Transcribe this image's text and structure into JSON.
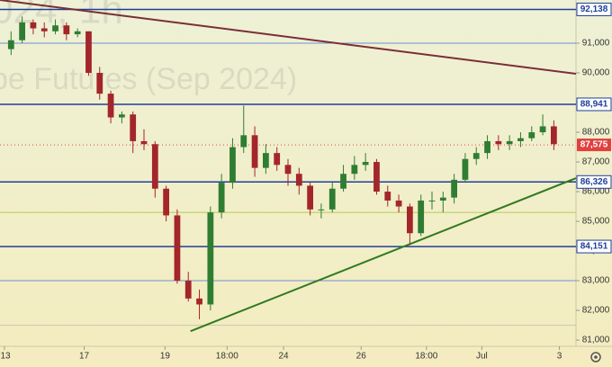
{
  "chart_data": {
    "type": "candlestick",
    "watermark": [
      "024, 1h",
      "be Futures (Sep 2024)"
    ],
    "x": [
      0,
      1,
      2,
      3,
      4,
      5,
      6,
      7,
      8,
      9,
      10,
      11,
      12,
      13,
      14,
      15,
      16,
      17,
      18,
      19,
      20,
      21,
      22,
      23,
      24,
      25,
      26,
      27,
      28,
      29,
      30,
      31,
      32,
      33,
      34,
      35,
      36,
      37,
      38,
      39,
      40,
      41,
      42,
      43,
      44,
      45,
      46,
      47,
      48,
      49
    ],
    "open": [
      90800,
      91100,
      91700,
      91500,
      91400,
      91600,
      91300,
      91400,
      90000,
      89300,
      88500,
      88600,
      87700,
      87600,
      86100,
      85200,
      83000,
      82400,
      82200,
      85300,
      86300,
      87500,
      87900,
      86800,
      87300,
      86900,
      86600,
      86200,
      85400,
      85400,
      86100,
      86600,
      86900,
      87000,
      86000,
      85700,
      85500,
      84600,
      85700,
      85700,
      85800,
      86400,
      87100,
      87300,
      87700,
      87600,
      87700,
      87800,
      88000,
      88200
    ],
    "high": [
      91400,
      91900,
      91800,
      91700,
      91800,
      91700,
      91500,
      91400,
      90200,
      89400,
      88700,
      88700,
      88100,
      87700,
      86200,
      85400,
      83300,
      82700,
      85500,
      86600,
      87800,
      88900,
      88200,
      87600,
      87500,
      87100,
      86800,
      86300,
      85600,
      86300,
      86900,
      87200,
      87300,
      87100,
      86200,
      85900,
      85600,
      85900,
      86000,
      86000,
      86600,
      87300,
      87500,
      87900,
      87900,
      87900,
      88000,
      88200,
      88600,
      88400
    ],
    "low": [
      90600,
      91000,
      91300,
      91200,
      91300,
      91100,
      91200,
      89900,
      89100,
      88300,
      88300,
      87300,
      87400,
      85800,
      85000,
      82900,
      82300,
      81700,
      82000,
      85100,
      86100,
      87300,
      86500,
      86600,
      86700,
      86200,
      85900,
      85200,
      85100,
      85300,
      86000,
      86400,
      86700,
      85900,
      85500,
      85300,
      84200,
      84500,
      85400,
      85300,
      85600,
      86300,
      86900,
      87100,
      87400,
      87400,
      87500,
      87700,
      87900,
      87400
    ],
    "close": [
      91100,
      91700,
      91500,
      91400,
      91600,
      91300,
      91400,
      90000,
      89300,
      88500,
      88600,
      87700,
      87600,
      86100,
      85200,
      83000,
      82400,
      82200,
      85300,
      86300,
      87500,
      87900,
      86800,
      87300,
      86900,
      86600,
      86200,
      85400,
      85400,
      86100,
      86600,
      86900,
      87000,
      86000,
      85700,
      85500,
      84600,
      85700,
      85700,
      85800,
      86400,
      87100,
      87300,
      87700,
      87600,
      87700,
      87800,
      88000,
      88200,
      87600
    ],
    "up_color": "#2f7d32",
    "down_color": "#a3262a",
    "xlim": [
      -1,
      51
    ],
    "xticks": [
      {
        "value": -0.6,
        "label": "13"
      },
      {
        "value": 6.6,
        "label": "17"
      },
      {
        "value": 13.9,
        "label": "19"
      },
      {
        "value": 19.5,
        "label": "18:00"
      },
      {
        "value": 24.6,
        "label": "24"
      },
      {
        "value": 31.6,
        "label": "26"
      },
      {
        "value": 37.5,
        "label": "18:00"
      },
      {
        "value": 42.5,
        "label": "Jul"
      },
      {
        "value": 49.5,
        "label": "3"
      }
    ],
    "ylim": [
      80790,
      92455
    ],
    "yticks": [
      {
        "value": 91000,
        "label": "91,000"
      },
      {
        "value": 90000,
        "label": "90,000"
      },
      {
        "value": 89000,
        "label": "89,000"
      },
      {
        "value": 88000,
        "label": "88,000"
      },
      {
        "value": 87000,
        "label": "87,000"
      },
      {
        "value": 86000,
        "label": "86,000"
      },
      {
        "value": 85000,
        "label": "85,000"
      },
      {
        "value": 84000,
        "label": "84,000"
      },
      {
        "value": 83000,
        "label": "83,000"
      },
      {
        "value": 82000,
        "label": "82,000"
      },
      {
        "value": 81000,
        "label": "81,000"
      }
    ],
    "levels": [
      {
        "value": 92138,
        "label": "92,138"
      },
      {
        "value": 88941,
        "label": "88,941"
      },
      {
        "value": 86326,
        "label": "86,326"
      },
      {
        "value": 84151,
        "label": "84,151"
      }
    ],
    "level_color": "#1f3f9a",
    "guides": [
      {
        "value": 91000,
        "color": "#6f8fd0"
      },
      {
        "value": 85300,
        "color": "#b5cc55"
      },
      {
        "value": 83000,
        "color": "#6f8fd0"
      },
      {
        "value": 81500,
        "color": "#c8c8a8"
      }
    ],
    "last_price": {
      "value": 87575,
      "label": "87,575"
    },
    "last_color": "#e0413f",
    "trendlines": [
      {
        "color": "#7a2e36",
        "x": [
          -1,
          51
        ],
        "y": [
          92455,
          89970
        ]
      },
      {
        "color": "#2f7a1e",
        "x": [
          16.2,
          51
        ],
        "y": [
          81300,
          86455
        ]
      }
    ]
  }
}
